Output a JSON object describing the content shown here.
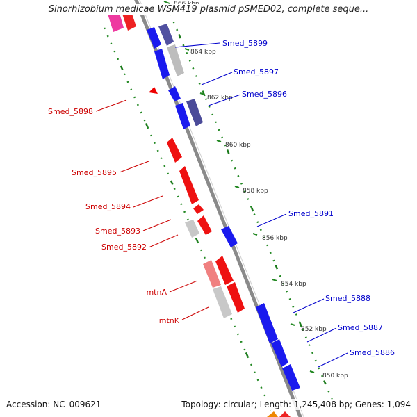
{
  "header": {
    "title": "Sinorhizobium medicae WSM419 plasmid pSMED02, complete seque..."
  },
  "footer": {
    "accession": "Accession: NC_009621",
    "topology": "Topology: circular; Length: 1,245,408 bp; Genes: 1,094"
  },
  "colors": {
    "backbone": "#8a8a8a",
    "forward_strand": "#0000ee",
    "forward_gene_dark": "#4b4b99",
    "reverse_strand": "#ee0000",
    "reverse_gene_light": "#f08080",
    "pseudo_gene": "#bbbbbb",
    "track_dots": "#228822",
    "label_blue": "#0000cc",
    "label_red": "#cc0000"
  },
  "kbp_markers": [
    {
      "label": "866 kbp"
    },
    {
      "label": "864 kbp"
    },
    {
      "label": "862 kbp"
    },
    {
      "label": "860 kbp"
    },
    {
      "label": "858 kbp"
    },
    {
      "label": "856 kbp"
    },
    {
      "label": "854 kbp"
    },
    {
      "label": "852 kbp"
    },
    {
      "label": "850 kbp"
    }
  ],
  "labels": {
    "smed_5899": "Smed_5899",
    "smed_5897": "Smed_5897",
    "smed_5896": "Smed_5896",
    "smed_5891": "Smed_5891",
    "smed_5888": "Smed_5888",
    "smed_5887": "Smed_5887",
    "smed_5886": "Smed_5886",
    "smed_5898": "Smed_5898",
    "smed_5895": "Smed_5895",
    "smed_5894": "Smed_5894",
    "smed_5893": "Smed_5893",
    "smed_5892": "Smed_5892",
    "mtnA": "mtnA",
    "mtnK": "mtnK"
  }
}
